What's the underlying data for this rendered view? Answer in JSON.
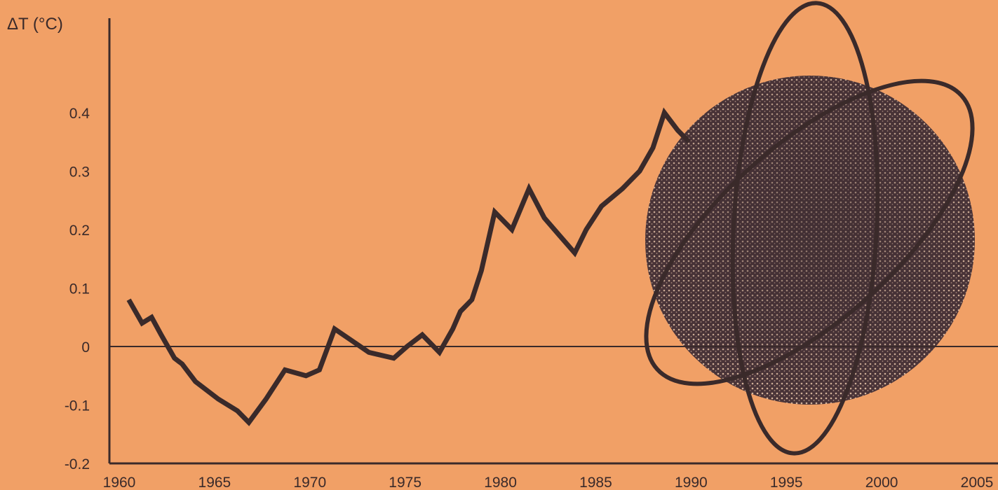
{
  "colors": {
    "background": "#f1a066",
    "ink": "#3a2a2a",
    "globe_dark": "#3b2b30",
    "globe_light": "#d9b8a0"
  },
  "chart_data": {
    "type": "line",
    "title": "",
    "ylabel": "ΔT (°C)",
    "xlabel": "",
    "xlim": [
      1960,
      2005
    ],
    "ylim": [
      -0.2,
      0.45
    ],
    "x_ticks": [
      "1960",
      "1965",
      "1970",
      "1975",
      "1980",
      "1985",
      "1990",
      "1995",
      "2000",
      "2005"
    ],
    "y_ticks": [
      "0.4",
      "0.3",
      "0.2",
      "0.1",
      "0",
      "-0.1",
      "-0.2"
    ],
    "grid": false,
    "zero_line": true,
    "series": [
      {
        "x": [
          1960.5,
          1961.2,
          1961.7,
          1962.2,
          1962.9,
          1963.3,
          1964.0,
          1965.2,
          1966.2,
          1966.8,
          1967.7,
          1968.7,
          1969.8,
          1970.5,
          1971.3,
          1972.2,
          1973.1,
          1974.4,
          1975.1,
          1975.9,
          1976.8,
          1977.5,
          1977.9,
          1978.5,
          1979.0,
          1979.7,
          1980.6,
          1981.5,
          1982.3,
          1983.1,
          1983.9,
          1984.5,
          1985.3,
          1986.4,
          1987.3,
          1988.0,
          1988.6,
          1989.3,
          1989.9
        ],
        "y": [
          0.08,
          0.04,
          0.05,
          0.02,
          -0.02,
          -0.03,
          -0.06,
          -0.09,
          -0.11,
          -0.13,
          -0.09,
          -0.04,
          -0.05,
          -0.04,
          0.03,
          0.01,
          -0.01,
          -0.02,
          0.0,
          0.02,
          -0.01,
          0.03,
          0.06,
          0.08,
          0.13,
          0.23,
          0.2,
          0.27,
          0.22,
          0.19,
          0.16,
          0.2,
          0.24,
          0.27,
          0.3,
          0.34,
          0.4,
          0.37,
          0.35
        ]
      }
    ]
  }
}
